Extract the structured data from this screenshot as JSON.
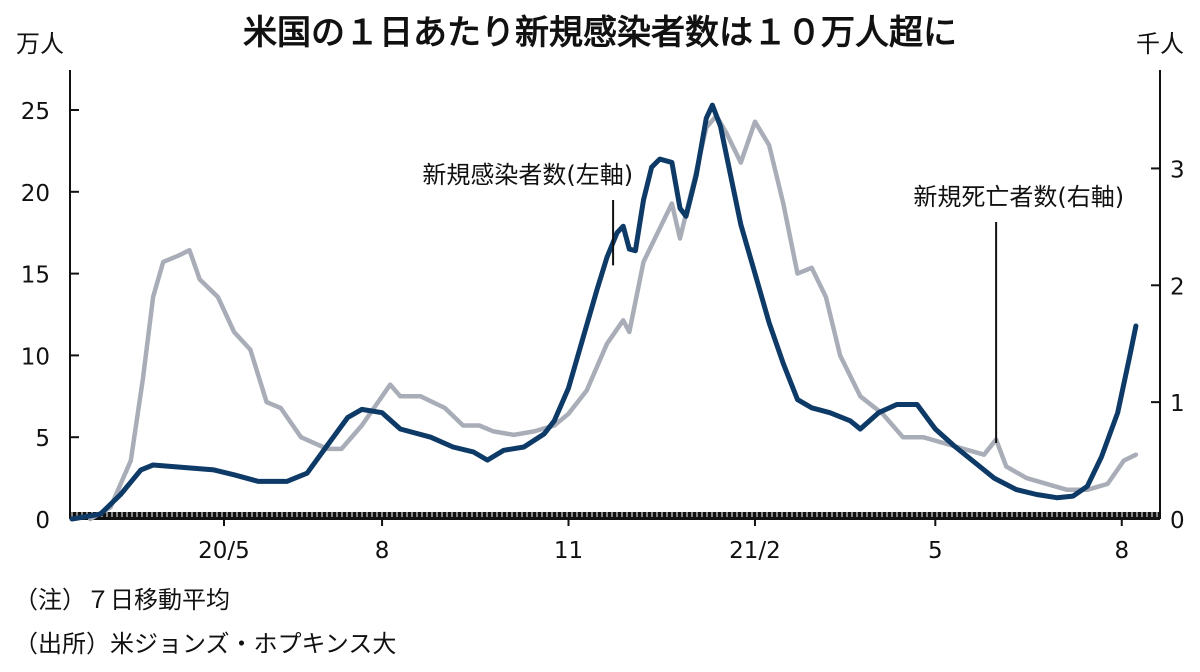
{
  "chart_data": {
    "type": "line",
    "title": "米国の１日あたり新規感染者数は１０万人超に",
    "left_unit": "万人",
    "right_unit": "千人",
    "x_tick_labels": [
      "20/5",
      "8",
      "11",
      "21/2",
      "5",
      "8"
    ],
    "x_ticks": [
      "2020-05-15",
      "2020-08-01",
      "2020-11-01",
      "2021-02-01",
      "2021-05-01",
      "2021-08-01"
    ],
    "x_range": [
      "2020-03-01",
      "2021-08-10"
    ],
    "y_left_range": [
      0,
      25
    ],
    "y_left_ticks": [
      0,
      5,
      10,
      15,
      20,
      25
    ],
    "y_right_range": [
      0,
      3.5
    ],
    "y_right_ticks": [
      0,
      1,
      2,
      3
    ],
    "colors": {
      "cases": "#0d3a66",
      "deaths": "#a9adb8",
      "axis": "#111111"
    },
    "series": [
      {
        "key": "cases",
        "axis": "left",
        "points": [
          [
            "2020-03-01",
            0.0
          ],
          [
            "2020-03-15",
            0.3
          ],
          [
            "2020-03-25",
            1.5
          ],
          [
            "2020-04-04",
            3.0
          ],
          [
            "2020-04-10",
            3.3
          ],
          [
            "2020-04-20",
            3.2
          ],
          [
            "2020-05-10",
            3.0
          ],
          [
            "2020-05-20",
            2.7
          ],
          [
            "2020-06-01",
            2.3
          ],
          [
            "2020-06-15",
            2.3
          ],
          [
            "2020-06-25",
            2.8
          ],
          [
            "2020-07-05",
            4.5
          ],
          [
            "2020-07-15",
            6.2
          ],
          [
            "2020-07-22",
            6.7
          ],
          [
            "2020-08-01",
            6.5
          ],
          [
            "2020-08-10",
            5.5
          ],
          [
            "2020-08-25",
            5.0
          ],
          [
            "2020-09-05",
            4.4
          ],
          [
            "2020-09-15",
            4.1
          ],
          [
            "2020-09-22",
            3.6
          ],
          [
            "2020-09-30",
            4.2
          ],
          [
            "2020-10-10",
            4.4
          ],
          [
            "2020-10-20",
            5.2
          ],
          [
            "2020-10-25",
            6.0
          ],
          [
            "2020-11-01",
            8.0
          ],
          [
            "2020-11-08",
            11.0
          ],
          [
            "2020-11-15",
            14.0
          ],
          [
            "2020-11-20",
            16.0
          ],
          [
            "2020-11-25",
            17.5
          ],
          [
            "2020-11-28",
            17.9
          ],
          [
            "2020-12-01",
            16.5
          ],
          [
            "2020-12-04",
            16.4
          ],
          [
            "2020-12-08",
            19.5
          ],
          [
            "2020-12-12",
            21.5
          ],
          [
            "2020-12-16",
            22.0
          ],
          [
            "2020-12-22",
            21.8
          ],
          [
            "2020-12-26",
            19.0
          ],
          [
            "2020-12-29",
            18.5
          ],
          [
            "2021-01-03",
            21.0
          ],
          [
            "2021-01-08",
            24.5
          ],
          [
            "2021-01-11",
            25.3
          ],
          [
            "2021-01-15",
            24.0
          ],
          [
            "2021-01-20",
            21.0
          ],
          [
            "2021-01-25",
            18.0
          ],
          [
            "2021-02-01",
            15.0
          ],
          [
            "2021-02-08",
            12.0
          ],
          [
            "2021-02-15",
            9.5
          ],
          [
            "2021-02-22",
            7.3
          ],
          [
            "2021-03-01",
            6.8
          ],
          [
            "2021-03-10",
            6.5
          ],
          [
            "2021-03-20",
            6.0
          ],
          [
            "2021-03-25",
            5.5
          ],
          [
            "2021-04-03",
            6.5
          ],
          [
            "2021-04-12",
            7.0
          ],
          [
            "2021-04-22",
            7.0
          ],
          [
            "2021-05-01",
            5.5
          ],
          [
            "2021-05-10",
            4.5
          ],
          [
            "2021-05-20",
            3.5
          ],
          [
            "2021-05-30",
            2.5
          ],
          [
            "2021-06-10",
            1.8
          ],
          [
            "2021-06-20",
            1.5
          ],
          [
            "2021-06-30",
            1.3
          ],
          [
            "2021-07-08",
            1.4
          ],
          [
            "2021-07-15",
            2.0
          ],
          [
            "2021-07-22",
            3.8
          ],
          [
            "2021-07-30",
            6.5
          ],
          [
            "2021-08-05",
            10.0
          ],
          [
            "2021-08-08",
            11.8
          ]
        ]
      },
      {
        "key": "deaths",
        "axis": "right",
        "points": [
          [
            "2020-03-10",
            0.0
          ],
          [
            "2020-03-20",
            0.1
          ],
          [
            "2020-03-30",
            0.5
          ],
          [
            "2020-04-05",
            1.2
          ],
          [
            "2020-04-10",
            1.9
          ],
          [
            "2020-04-15",
            2.2
          ],
          [
            "2020-04-22",
            2.25
          ],
          [
            "2020-04-28",
            2.3
          ],
          [
            "2020-05-03",
            2.05
          ],
          [
            "2020-05-12",
            1.9
          ],
          [
            "2020-05-20",
            1.6
          ],
          [
            "2020-05-28",
            1.45
          ],
          [
            "2020-06-05",
            1.0
          ],
          [
            "2020-06-12",
            0.95
          ],
          [
            "2020-06-22",
            0.7
          ],
          [
            "2020-07-05",
            0.6
          ],
          [
            "2020-07-12",
            0.6
          ],
          [
            "2020-07-22",
            0.8
          ],
          [
            "2020-08-01",
            1.05
          ],
          [
            "2020-08-05",
            1.15
          ],
          [
            "2020-08-10",
            1.05
          ],
          [
            "2020-08-20",
            1.05
          ],
          [
            "2020-09-01",
            0.95
          ],
          [
            "2020-09-10",
            0.8
          ],
          [
            "2020-09-18",
            0.8
          ],
          [
            "2020-09-25",
            0.75
          ],
          [
            "2020-10-05",
            0.72
          ],
          [
            "2020-10-15",
            0.75
          ],
          [
            "2020-10-25",
            0.8
          ],
          [
            "2020-11-01",
            0.9
          ],
          [
            "2020-11-10",
            1.1
          ],
          [
            "2020-11-20",
            1.5
          ],
          [
            "2020-11-28",
            1.7
          ],
          [
            "2020-12-01",
            1.6
          ],
          [
            "2020-12-08",
            2.2
          ],
          [
            "2020-12-15",
            2.45
          ],
          [
            "2020-12-22",
            2.7
          ],
          [
            "2020-12-26",
            2.4
          ],
          [
            "2021-01-02",
            2.9
          ],
          [
            "2021-01-08",
            3.35
          ],
          [
            "2021-01-13",
            3.45
          ],
          [
            "2021-01-18",
            3.3
          ],
          [
            "2021-01-25",
            3.05
          ],
          [
            "2021-02-01",
            3.4
          ],
          [
            "2021-02-08",
            3.2
          ],
          [
            "2021-02-15",
            2.7
          ],
          [
            "2021-02-22",
            2.1
          ],
          [
            "2021-03-01",
            2.15
          ],
          [
            "2021-03-08",
            1.9
          ],
          [
            "2021-03-15",
            1.4
          ],
          [
            "2021-03-25",
            1.05
          ],
          [
            "2021-04-05",
            0.9
          ],
          [
            "2021-04-15",
            0.7
          ],
          [
            "2021-04-25",
            0.7
          ],
          [
            "2021-05-05",
            0.65
          ],
          [
            "2021-05-15",
            0.6
          ],
          [
            "2021-05-25",
            0.55
          ],
          [
            "2021-05-31",
            0.68
          ],
          [
            "2021-06-05",
            0.45
          ],
          [
            "2021-06-15",
            0.35
          ],
          [
            "2021-06-25",
            0.3
          ],
          [
            "2021-07-05",
            0.25
          ],
          [
            "2021-07-15",
            0.25
          ],
          [
            "2021-07-25",
            0.3
          ],
          [
            "2021-08-02",
            0.5
          ],
          [
            "2021-08-08",
            0.55
          ]
        ]
      }
    ],
    "annotations": [
      {
        "key": "cases_label",
        "text": "新規感染者数(左軸)",
        "at": [
          "2020-11-23",
          15.5
        ]
      },
      {
        "key": "deaths_label",
        "text": "新規死亡者数(右軸)",
        "at": [
          "2021-05-31",
          0.65
        ]
      }
    ],
    "legend": "none",
    "grid": false
  },
  "notes": {
    "line1": "（注）７日移動平均",
    "line2": "（出所）米ジョンズ・ホプキンス大"
  }
}
